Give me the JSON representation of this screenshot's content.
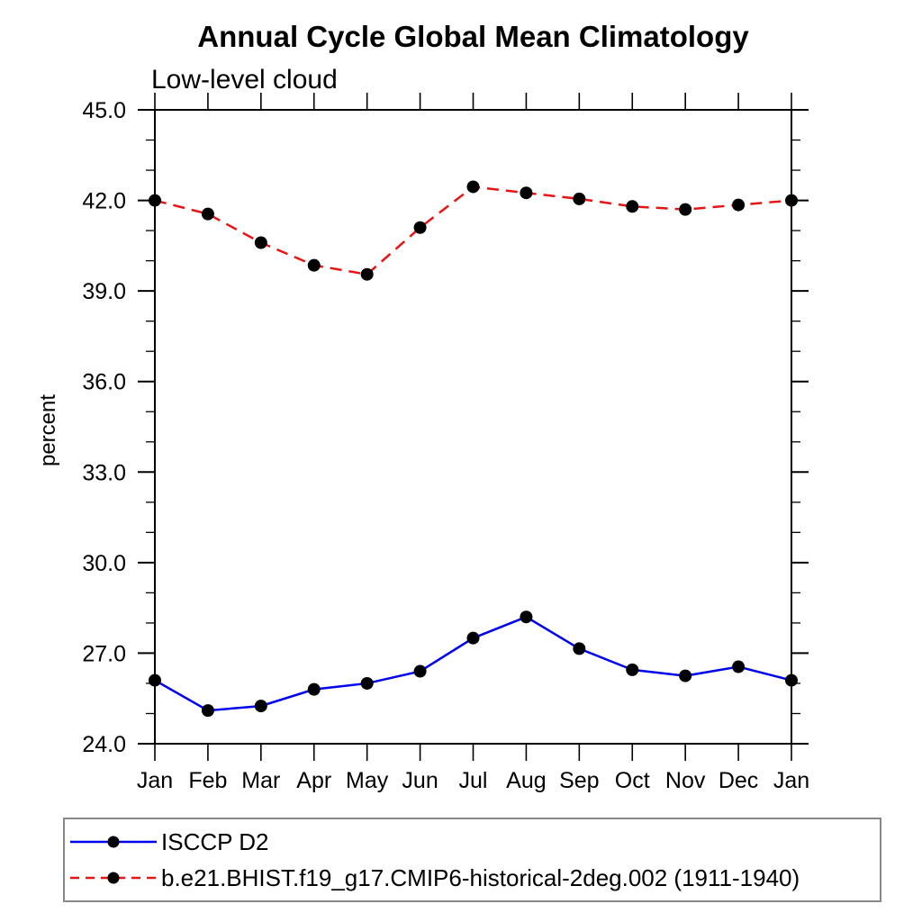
{
  "chart_data": {
    "type": "line",
    "title": "Annual Cycle Global Mean Climatology",
    "subtitle": "Low-level cloud",
    "ylabel": "percent",
    "xlabel": "",
    "x_tick_labels": [
      "Jan",
      "Feb",
      "Mar",
      "Apr",
      "May",
      "Jun",
      "Jul",
      "Aug",
      "Sep",
      "Oct",
      "Nov",
      "Dec",
      "Jan"
    ],
    "ylim": [
      24.0,
      45.0
    ],
    "ytick_labels": [
      "24.0",
      "27.0",
      "30.0",
      "33.0",
      "36.0",
      "39.0",
      "42.0",
      "45.0"
    ],
    "ytick_major_interval": 3.0,
    "ytick_minor_interval": 1.0,
    "grid": false,
    "frame": "box-with-outward-ticks",
    "legend_position": "bottom-left",
    "marker_color": "#000000",
    "series": [
      {
        "name": "ISCCP D2",
        "color": "#0000ee",
        "line_style": "solid",
        "marker": "filled-circle",
        "values": [
          26.1,
          25.1,
          25.25,
          25.8,
          26.0,
          26.4,
          27.5,
          28.2,
          27.15,
          26.45,
          26.25,
          26.55,
          26.1
        ]
      },
      {
        "name": "b.e21.BHIST.f19_g17.CMIP6-historical-2deg.002 (1911-1940)",
        "color": "#e81414",
        "line_style": "dashed",
        "marker": "filled-circle",
        "values": [
          42.0,
          41.55,
          40.6,
          39.85,
          39.55,
          41.1,
          42.45,
          42.25,
          42.05,
          41.8,
          41.7,
          41.85,
          42.0
        ]
      }
    ]
  }
}
